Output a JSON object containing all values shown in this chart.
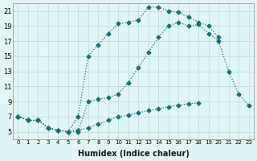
{
  "xlabel": "Humidex (Indice chaleur)",
  "ylabel": "",
  "bg_color": "#e0f5f5",
  "grid_color": "#c0dede",
  "line_color": "#1a7070",
  "xlim": [
    -0.5,
    23.5
  ],
  "ylim": [
    4,
    22
  ],
  "xticks": [
    0,
    1,
    2,
    3,
    4,
    5,
    6,
    7,
    8,
    9,
    10,
    11,
    12,
    13,
    14,
    15,
    16,
    17,
    18,
    19,
    20,
    21,
    22,
    23
  ],
  "yticks": [
    5,
    7,
    9,
    11,
    13,
    15,
    17,
    19,
    21
  ],
  "line1_x": [
    0,
    1,
    2,
    3,
    4,
    5,
    6,
    7,
    8,
    9,
    10,
    11,
    12,
    13,
    14,
    15,
    16,
    17,
    18,
    19,
    20,
    21,
    22,
    23
  ],
  "line1_y": [
    7.0,
    6.5,
    6.5,
    5.5,
    5.2,
    5.0,
    5.0,
    9.0,
    9.3,
    9.5,
    10.0,
    11.5,
    13.5,
    15.5,
    17.5,
    19.0,
    19.5,
    19.0,
    19.2,
    18.0,
    17.0,
    13.0,
    10.0,
    8.5
  ],
  "line2_x": [
    0,
    1,
    2,
    3,
    4,
    5,
    6,
    7,
    8,
    9,
    10,
    11,
    12,
    13,
    14,
    15,
    16,
    17,
    18,
    19,
    20
  ],
  "line2_y": [
    7.0,
    6.5,
    6.5,
    5.5,
    5.2,
    5.0,
    7.0,
    15.0,
    16.5,
    18.0,
    19.3,
    19.5,
    19.8,
    21.5,
    21.5,
    21.0,
    20.8,
    20.2,
    19.5,
    19.0,
    17.5
  ],
  "line3_x": [
    0,
    1,
    2,
    3,
    4,
    5,
    6,
    7,
    8,
    9,
    10,
    11,
    12,
    13,
    14,
    15,
    16,
    17,
    18
  ],
  "line3_y": [
    7.0,
    6.5,
    6.5,
    5.5,
    5.2,
    5.0,
    5.2,
    5.5,
    6.0,
    6.5,
    7.0,
    7.2,
    7.5,
    7.8,
    8.0,
    8.3,
    8.5,
    8.7,
    8.8
  ]
}
